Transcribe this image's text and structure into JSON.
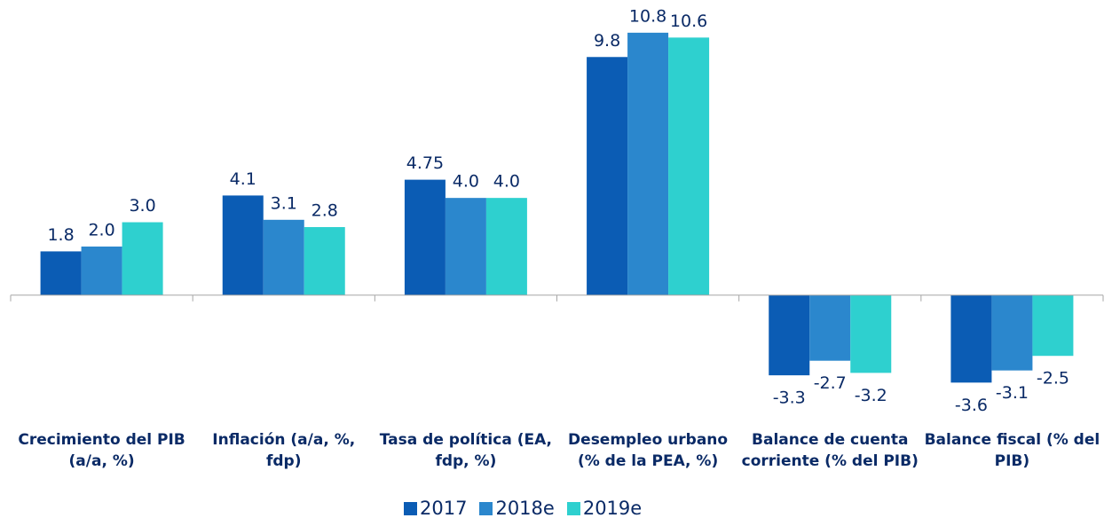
{
  "chart_data": {
    "type": "bar",
    "categories": [
      "Crecimiento del PIB (a/a, %)",
      "Inflación (a/a, %, fdp)",
      "Tasa de política (EA, fdp, %)",
      "Desempleo urbano (% de la PEA, %)",
      "Balance de cuenta corriente (% del PIB)",
      "Balance fiscal (% del PIB)"
    ],
    "series": [
      {
        "name": "2017",
        "color": "#0b5cb4",
        "values": [
          1.8,
          4.1,
          4.75,
          9.8,
          -3.3,
          -3.6
        ],
        "value_labels": [
          "1.8",
          "4.1",
          "4.75",
          "9.8",
          "-3.3",
          "-3.6"
        ]
      },
      {
        "name": "2018e",
        "color": "#2b87cd",
        "values": [
          2.0,
          3.1,
          4.0,
          10.8,
          -2.7,
          -3.1
        ],
        "value_labels": [
          "2.0",
          "3.1",
          "4.0",
          "10.8",
          "-2.7",
          "-3.1"
        ]
      },
      {
        "name": "2019e",
        "color": "#2ed0cf",
        "values": [
          3.0,
          2.8,
          4.0,
          10.6,
          -3.2,
          -2.5
        ],
        "value_labels": [
          "3.0",
          "2.8",
          "4.0",
          "10.6",
          "-3.2",
          "-2.5"
        ]
      }
    ],
    "ylim": [
      -4.5,
      12
    ],
    "legend": "bottom"
  }
}
